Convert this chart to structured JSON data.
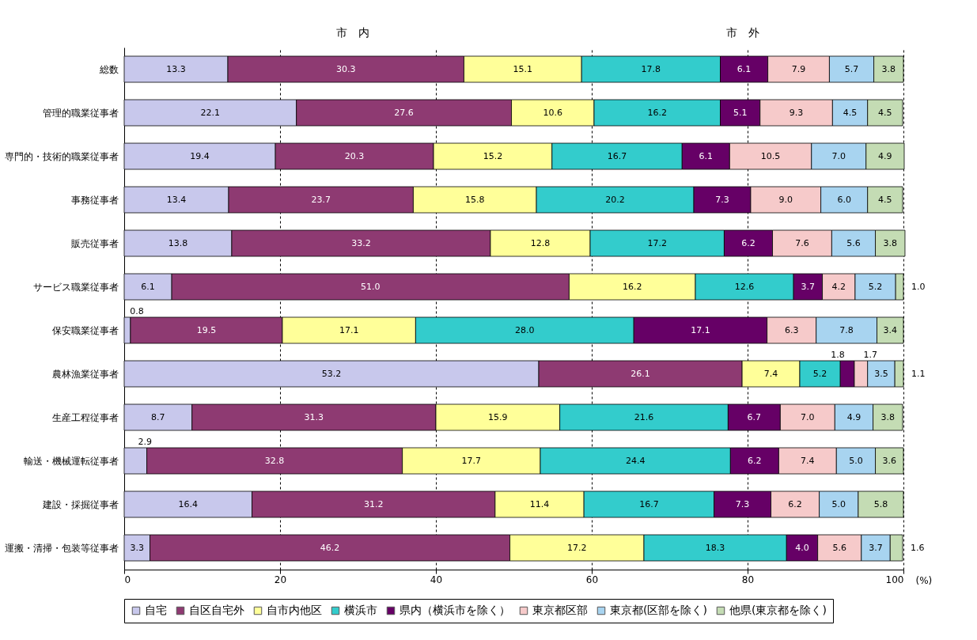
{
  "chart_data": {
    "type": "bar",
    "orientation": "horizontal",
    "stacked": true,
    "grid": "x",
    "legend": "bottom",
    "xlabel": "(%)",
    "annotations": [
      "市　内",
      "市　外"
    ],
    "categories": [
      "総数",
      "管理的職業従事者",
      "専門的・技術的職業従事者",
      "事務従事者",
      "販売従事者",
      "サービス職業従事者",
      "保安職業従事者",
      "農林漁業従事者",
      "生産工程従事者",
      "輸送・機械運転従事者",
      "建設・採掘従事者",
      "運搬・清掃・包装等従事者"
    ],
    "xlim": [
      0,
      100
    ],
    "xticks": [
      0,
      20,
      40,
      60,
      80,
      100
    ],
    "series": [
      {
        "name": "自宅",
        "color": "#c8c8ec",
        "values": [
          13.3,
          22.1,
          19.4,
          13.4,
          13.8,
          6.1,
          0.8,
          53.2,
          8.7,
          2.9,
          16.4,
          3.3
        ],
        "value_labels": [
          "13.3",
          "22.1",
          "19.4",
          "13.4",
          "13.8",
          "6.1",
          "0.8",
          "53.2",
          "8.7",
          "2.9",
          "16.4",
          "3.3"
        ]
      },
      {
        "name": "自区自宅外",
        "color": "#8e3a72",
        "values": [
          30.3,
          27.6,
          20.3,
          23.7,
          33.2,
          51.0,
          19.5,
          26.1,
          31.3,
          32.8,
          31.2,
          46.2
        ],
        "value_labels": [
          "30.3",
          "27.6",
          "20.3",
          "23.7",
          "33.2",
          "51.0",
          "19.5",
          "26.1",
          "31.3",
          "32.8",
          "31.2",
          "46.2"
        ]
      },
      {
        "name": "自市内他区",
        "color": "#ffff99",
        "values": [
          15.1,
          10.6,
          15.2,
          15.8,
          12.8,
          16.2,
          17.1,
          7.4,
          15.9,
          17.7,
          11.4,
          17.2
        ],
        "value_labels": [
          "15.1",
          "10.6",
          "15.2",
          "15.8",
          "12.8",
          "16.2",
          "17.1",
          "7.4",
          "15.9",
          "17.7",
          "11.4",
          "17.2"
        ]
      },
      {
        "name": "横浜市",
        "color": "#33cccc",
        "values": [
          17.8,
          16.2,
          16.7,
          20.2,
          17.2,
          12.6,
          28.0,
          5.2,
          21.6,
          24.4,
          16.7,
          18.3
        ],
        "value_labels": [
          "17.8",
          "16.2",
          "16.7",
          "20.2",
          "17.2",
          "12.6",
          "28.0",
          "5.2",
          "21.6",
          "24.4",
          "16.7",
          "18.3"
        ]
      },
      {
        "name": "県内（横浜市を除く）",
        "color": "#660066",
        "values": [
          6.1,
          5.1,
          6.1,
          7.3,
          6.2,
          3.7,
          17.1,
          1.8,
          6.7,
          6.2,
          7.3,
          4.0
        ],
        "value_labels": [
          "6.1",
          "5.1",
          "6.1",
          "7.3",
          "6.2",
          "3.7",
          "17.1",
          "1.8",
          "6.7",
          "6.2",
          "7.3",
          "4.0"
        ]
      },
      {
        "name": "東京都区部",
        "color": "#f6caca",
        "values": [
          7.9,
          9.3,
          10.5,
          9.0,
          7.6,
          4.2,
          6.3,
          1.7,
          7.0,
          7.4,
          6.2,
          5.6
        ],
        "value_labels": [
          "7.9",
          "9.3",
          "10.5",
          "9.0",
          "7.6",
          "4.2",
          "6.3",
          "1.7",
          "7.0",
          "7.4",
          "6.2",
          "5.6"
        ]
      },
      {
        "name": "東京都(区部を除く)",
        "color": "#a8d4f0",
        "values": [
          5.7,
          4.5,
          7.0,
          6.0,
          5.6,
          5.2,
          7.8,
          3.5,
          4.9,
          5.0,
          5.0,
          3.7
        ],
        "value_labels": [
          "5.7",
          "4.5",
          "7.0",
          "6.0",
          "5.6",
          "5.2",
          "7.8",
          "3.5",
          "4.9",
          "5.0",
          "5.0",
          "3.7"
        ]
      },
      {
        "name": "他県(東京都を除く)",
        "color": "#c4dcb4",
        "values": [
          3.8,
          4.5,
          4.9,
          4.5,
          3.8,
          1.0,
          3.4,
          1.1,
          3.8,
          3.6,
          5.8,
          1.6
        ],
        "value_labels": [
          "3.8",
          "4.5",
          "4.9",
          "4.5",
          "3.8",
          "1.0",
          "3.4",
          "1.1",
          "3.8",
          "3.6",
          "5.8",
          "1.6"
        ]
      }
    ]
  }
}
